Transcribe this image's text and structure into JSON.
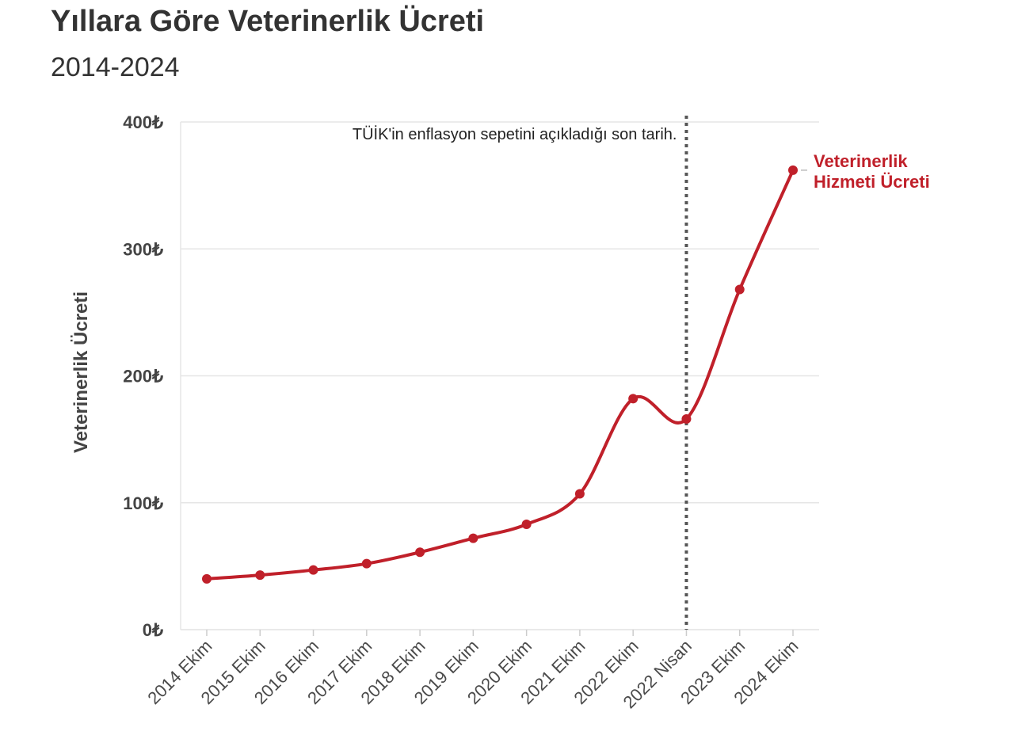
{
  "colors": {
    "series": "#c0202a",
    "grid": "#e6e6e6",
    "text": "#333333",
    "vline": "#555555"
  },
  "chart_data": {
    "type": "line",
    "title": "Yıllara Göre Veterinerlik Ücreti",
    "subtitle": "2014-2024",
    "ylabel": "Veterinerlik Ücreti",
    "xlabel": "",
    "ylim": [
      0,
      400
    ],
    "yticks": [
      0,
      100,
      200,
      300,
      400
    ],
    "ytick_labels": [
      "0₺",
      "100₺",
      "200₺",
      "300₺",
      "400₺"
    ],
    "grid": true,
    "categories": [
      "2014 Ekim",
      "2015 Ekim",
      "2016 Ekim",
      "2017 Ekim",
      "2018 Ekim",
      "2019 Ekim",
      "2020 Ekim",
      "2021 Ekim",
      "2022 Ekim",
      "2022 Nisan",
      "2023 Ekim",
      "2024 Ekim"
    ],
    "series": [
      {
        "name": "Veterinerlik Hizmeti Ücreti",
        "name_lines": [
          "Veterinerlik",
          "Hizmeti Ücreti"
        ],
        "values": [
          40,
          43,
          47,
          52,
          61,
          72,
          83,
          107,
          182,
          166,
          268,
          362
        ]
      }
    ],
    "annotation": {
      "text": "TÜİK'in enflasyon sepetini açıkladığı son tarih.",
      "at_category": "2022 Nisan"
    }
  }
}
